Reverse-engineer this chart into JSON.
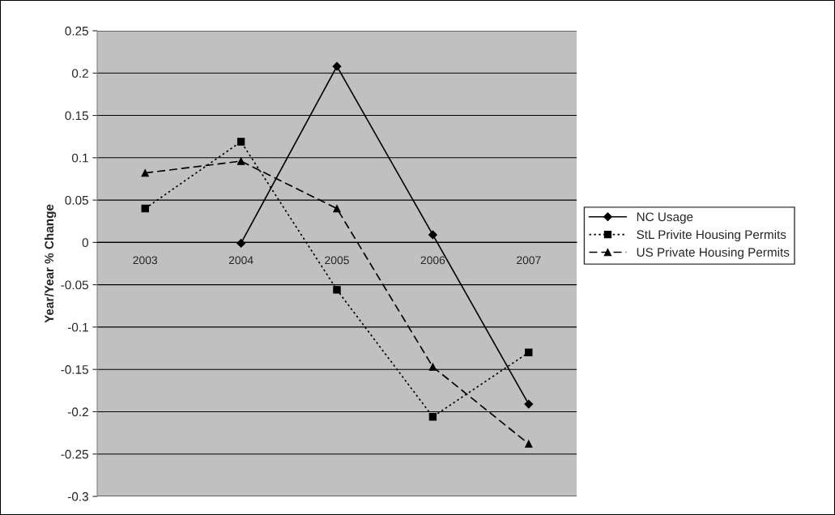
{
  "chart_data": {
    "type": "line",
    "ylabel": "Year/Year % Change",
    "categories": [
      "2003",
      "2004",
      "2005",
      "2006",
      "2007"
    ],
    "series": [
      {
        "name": "NC Usage",
        "color": "#000000",
        "marker": "diamond",
        "line_style": "solid",
        "values": [
          null,
          -0.001,
          0.208,
          0.009,
          -0.191
        ]
      },
      {
        "name": "StL Privite Housing Permits",
        "color": "#000000",
        "marker": "square",
        "line_style": "dotted",
        "values": [
          0.04,
          0.119,
          -0.056,
          -0.206,
          -0.13
        ]
      },
      {
        "name": "US Private Housing Permits",
        "color": "#000000",
        "marker": "triangle",
        "line_style": "dashed",
        "values": [
          0.082,
          0.096,
          0.04,
          -0.147,
          -0.238
        ]
      }
    ],
    "ylim": [
      -0.3,
      0.25
    ],
    "yticks": [
      -0.3,
      -0.25,
      -0.2,
      -0.15,
      -0.1,
      -0.05,
      0,
      0.05,
      0.1,
      0.15,
      0.2,
      0.25
    ],
    "grid": "y",
    "legend": "right"
  }
}
